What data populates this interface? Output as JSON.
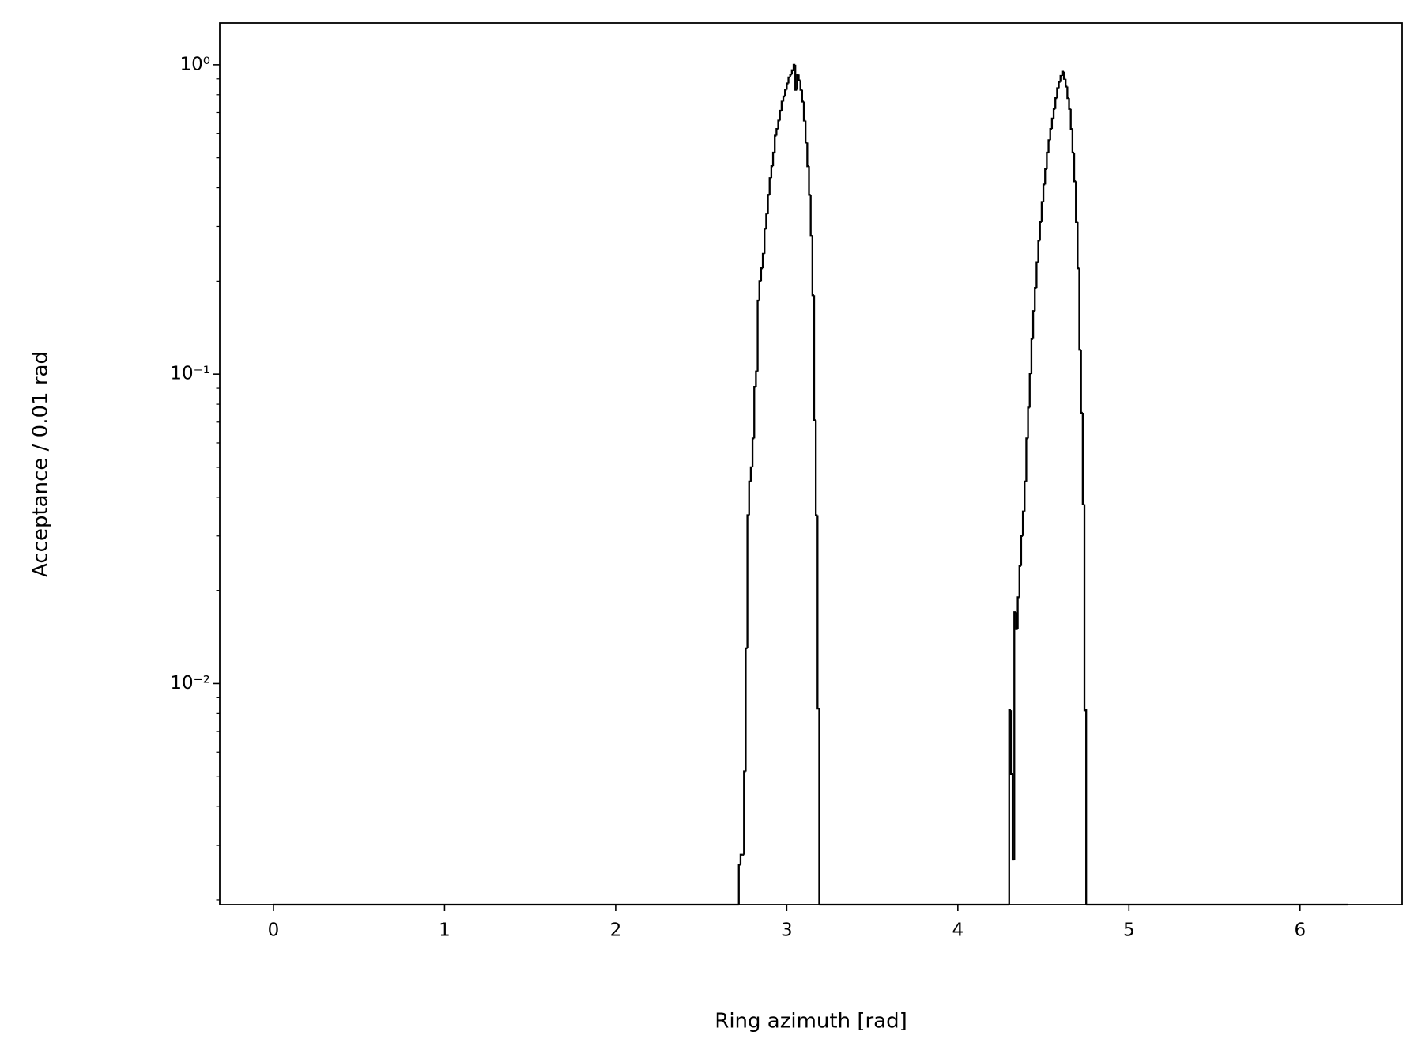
{
  "chart_data": {
    "type": "histogram",
    "histtype": "step",
    "color": "#000000",
    "xlabel": "Ring azimuth [rad]",
    "ylabel": "Acceptance / 0.01 rad",
    "yscale": "log",
    "xlim": [
      -0.314,
      6.597
    ],
    "ylim": [
      0.00193,
      1.365
    ],
    "xticks": [
      0,
      1,
      2,
      3,
      4,
      5,
      6
    ],
    "yticks": [
      {
        "value": 0.01,
        "label": "10⁻²"
      },
      {
        "value": 0.1,
        "label": "10⁻¹"
      },
      {
        "value": 1,
        "label": "10⁰"
      }
    ],
    "yminorticks": [
      0.002,
      0.003,
      0.004,
      0.005,
      0.006,
      0.007,
      0.008,
      0.009,
      0.02,
      0.03,
      0.04,
      0.05,
      0.06,
      0.07,
      0.08,
      0.09,
      0.2,
      0.3,
      0.4,
      0.5,
      0.6,
      0.7,
      0.8,
      0.9
    ],
    "bins": [
      0,
      2.72,
      2.73,
      2.74,
      2.75,
      2.76,
      2.77,
      2.78,
      2.79,
      2.8,
      2.81,
      2.82,
      2.83,
      2.84,
      2.85,
      2.86,
      2.87,
      2.88,
      2.89,
      2.9,
      2.91,
      2.92,
      2.93,
      2.94,
      2.95,
      2.96,
      2.97,
      2.98,
      2.99,
      3.0,
      3.01,
      3.02,
      3.03,
      3.04,
      3.05,
      3.06,
      3.07,
      3.08,
      3.09,
      3.1,
      3.11,
      3.12,
      3.13,
      3.14,
      3.15,
      3.16,
      3.17,
      3.18,
      3.19,
      4.3,
      4.31,
      4.32,
      4.33,
      4.34,
      4.35,
      4.36,
      4.37,
      4.38,
      4.39,
      4.4,
      4.41,
      4.42,
      4.43,
      4.44,
      4.45,
      4.46,
      4.47,
      4.48,
      4.49,
      4.5,
      4.51,
      4.52,
      4.53,
      4.54,
      4.55,
      4.56,
      4.57,
      4.58,
      4.59,
      4.6,
      4.61,
      4.62,
      4.63,
      4.64,
      4.65,
      4.66,
      4.67,
      4.68,
      4.69,
      4.7,
      4.71,
      4.72,
      4.73,
      4.74,
      4.75,
      6.28
    ],
    "values": [
      0,
      0.0026,
      0.0028,
      0.0028,
      0.0052,
      0.013,
      0.035,
      0.045,
      0.05,
      0.062,
      0.091,
      0.102,
      0.173,
      0.2,
      0.22,
      0.245,
      0.295,
      0.33,
      0.38,
      0.43,
      0.47,
      0.52,
      0.59,
      0.62,
      0.66,
      0.71,
      0.76,
      0.79,
      0.83,
      0.87,
      0.91,
      0.93,
      0.96,
      1.0,
      0.83,
      0.93,
      0.89,
      0.83,
      0.76,
      0.66,
      0.56,
      0.47,
      0.38,
      0.28,
      0.18,
      0.071,
      0.035,
      0.0083,
      0,
      0.0082,
      0.0051,
      0.0027,
      0.017,
      0.015,
      0.019,
      0.024,
      0.03,
      0.036,
      0.045,
      0.062,
      0.078,
      0.1,
      0.13,
      0.16,
      0.19,
      0.23,
      0.27,
      0.31,
      0.36,
      0.41,
      0.46,
      0.52,
      0.57,
      0.62,
      0.67,
      0.72,
      0.78,
      0.84,
      0.88,
      0.92,
      0.95,
      0.9,
      0.85,
      0.78,
      0.72,
      0.62,
      0.52,
      0.42,
      0.31,
      0.22,
      0.12,
      0.075,
      0.038,
      0.0082,
      0
    ]
  }
}
